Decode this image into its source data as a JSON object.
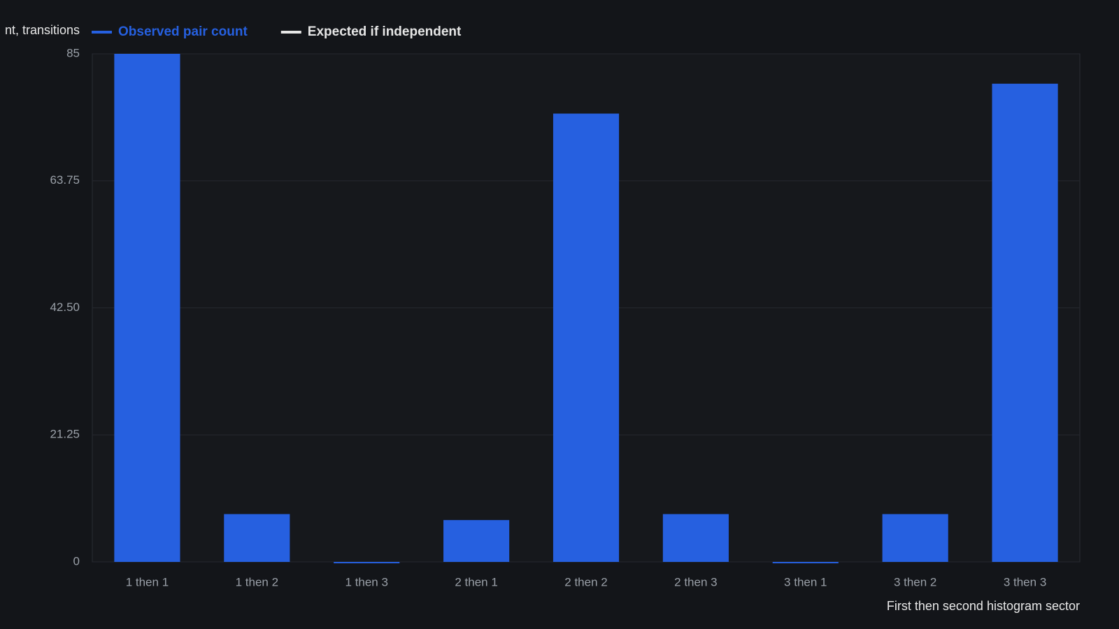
{
  "chart_data": {
    "type": "bar",
    "ylabel": "nt, transitions",
    "xlabel": "First then second histogram sector",
    "legend": [
      {
        "name": "Observed pair count",
        "color": "#2660e0"
      },
      {
        "name": "Expected if independent",
        "color": "#e6e6e6"
      }
    ],
    "categories": [
      "1 then 1",
      "1 then 2",
      "1 then 3",
      "2 then 1",
      "2 then 2",
      "2 then 3",
      "3 then 1",
      "3 then 2",
      "3 then 3"
    ],
    "values": [
      85,
      8,
      0,
      7,
      75,
      8,
      0,
      8,
      80
    ],
    "color": "#2660e0",
    "ylim": [
      0,
      85
    ],
    "yticks": [
      0,
      21.25,
      {
        "value": 42.5,
        "label": "42.50"
      },
      63.75,
      85
    ],
    "grid": true
  }
}
